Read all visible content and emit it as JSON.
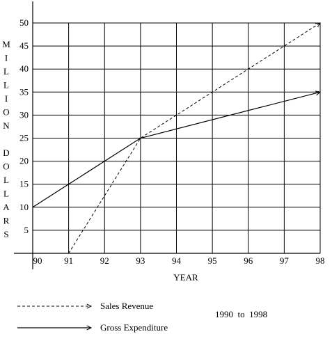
{
  "chart_data": {
    "type": "line",
    "x": [
      90,
      91,
      92,
      93,
      94,
      95,
      96,
      97,
      98
    ],
    "xlim": [
      90,
      98
    ],
    "ylim": [
      0,
      50
    ],
    "yticks": [
      5,
      10,
      15,
      20,
      25,
      30,
      35,
      40,
      45,
      50
    ],
    "grid": true,
    "xlabel": "YEAR",
    "ylabel_lines": [
      "MILLION",
      "DOLLARS"
    ],
    "series": [
      {
        "name": "Sales Revenue",
        "style": "dashed",
        "color": "#000000",
        "x": [
          91,
          93,
          98
        ],
        "y": [
          0,
          25,
          50
        ]
      },
      {
        "name": "Gross Expenditure",
        "style": "solid",
        "color": "#000000",
        "x": [
          90,
          93,
          98
        ],
        "y": [
          10,
          25,
          35
        ]
      }
    ],
    "annotation": "1990  to  1998"
  }
}
